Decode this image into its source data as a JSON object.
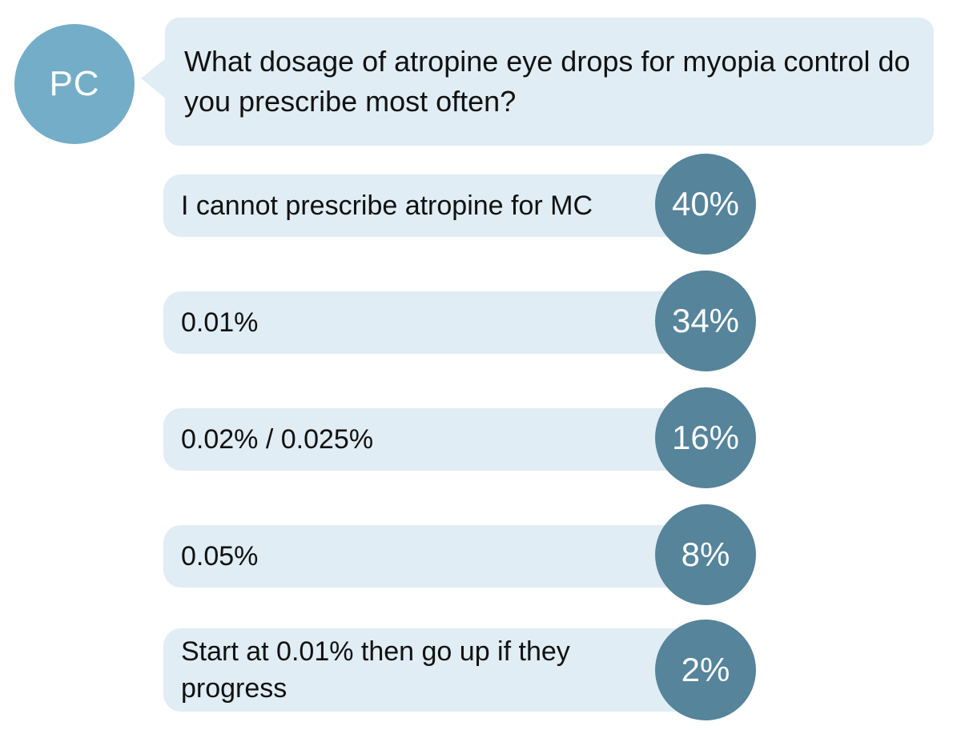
{
  "poll": {
    "avatar_initials": "PC",
    "question": "What dosage of atropine eye drops for myopia control do you prescribe most often?",
    "options": [
      {
        "label": "I cannot prescribe atropine for MC",
        "percent": "40%"
      },
      {
        "label": "0.01%",
        "percent": "34%"
      },
      {
        "label": "0.02% / 0.025%",
        "percent": "16%"
      },
      {
        "label": "0.05%",
        "percent": "8%"
      },
      {
        "label": "Start at 0.01% then go up if they progress",
        "percent": "2%"
      }
    ]
  },
  "colors": {
    "avatar": "#74adc7",
    "bubble": "#e0edf4",
    "percent_circle": "#55849b"
  }
}
